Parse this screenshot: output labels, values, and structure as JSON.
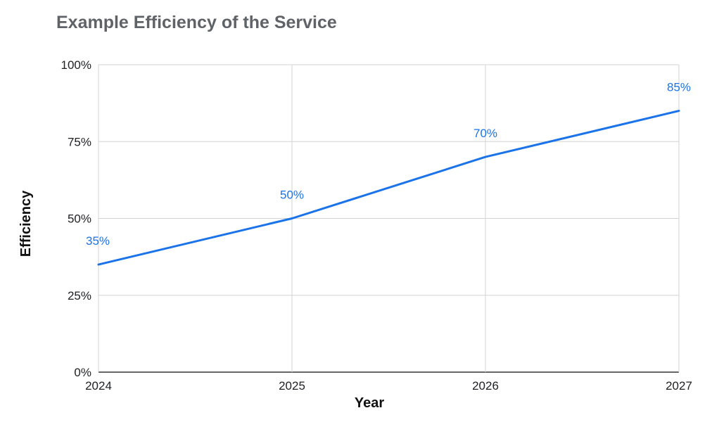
{
  "chart_data": {
    "type": "line",
    "title": "Example Efficiency of the Service",
    "xlabel": "Year",
    "ylabel": "Efficiency",
    "x": [
      "2024",
      "2025",
      "2026",
      "2027"
    ],
    "series": [
      {
        "values": [
          35,
          50,
          70,
          85
        ],
        "labels": [
          "35%",
          "50%",
          "70%",
          "85%"
        ],
        "color": "#1a73e8"
      }
    ],
    "ylim": [
      0,
      100
    ],
    "yticks": [
      0,
      25,
      50,
      75,
      100
    ],
    "ytick_labels": [
      "0%",
      "25%",
      "50%",
      "75%",
      "100%"
    ],
    "grid": true,
    "legend": "none"
  }
}
